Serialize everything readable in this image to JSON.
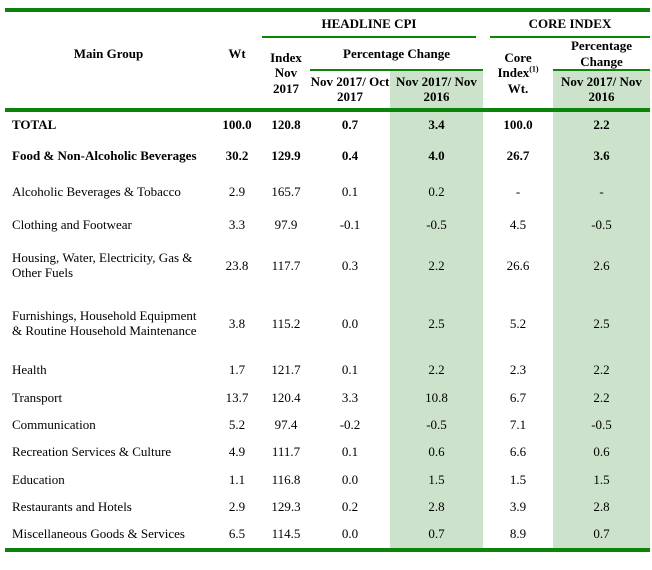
{
  "table": {
    "headers": {
      "main_group": "Main Group",
      "wt": "Wt",
      "headline_cpi": "HEADLINE CPI",
      "core_index": "CORE INDEX",
      "index_nov_2017": "Index Nov 2017",
      "percentage_change": "Percentage Change",
      "nov2017_oct2017": "Nov 2017/ Oct 2017",
      "nov2017_nov2016": "Nov 2017/ Nov 2016",
      "core_index_wt_pre": "Core Index",
      "core_index_wt_sup": "(1)",
      "core_index_wt_post": "Wt.",
      "core_percentage_change": "Percentage Change",
      "core_nov2017_nov2016": "Nov 2017/ Nov 2016"
    },
    "rows": [
      {
        "group": "TOTAL",
        "wt": "100.0",
        "index": "120.8",
        "mom": "0.7",
        "yoy": "3.4",
        "core_wt": "100.0",
        "core_yoy": "2.2",
        "bold": true
      },
      {
        "group": "Food & Non-Alcoholic Beverages",
        "wt": "30.2",
        "index": "129.9",
        "mom": "0.4",
        "yoy": "4.0",
        "core_wt": "26.7",
        "core_yoy": "3.6",
        "bold": true
      },
      {
        "group": "Alcoholic Beverages & Tobacco",
        "wt": "2.9",
        "index": "165.7",
        "mom": "0.1",
        "yoy": "0.2",
        "core_wt": "-",
        "core_yoy": "-",
        "bold": false
      },
      {
        "group": "Clothing and Footwear",
        "wt": "3.3",
        "index": "97.9",
        "mom": "-0.1",
        "yoy": "-0.5",
        "core_wt": "4.5",
        "core_yoy": "-0.5",
        "bold": false
      },
      {
        "group": "Housing, Water, Electricity, Gas & Other Fuels",
        "wt": "23.8",
        "index": "117.7",
        "mom": "0.3",
        "yoy": "2.2",
        "core_wt": "26.6",
        "core_yoy": "2.6",
        "bold": false
      },
      {
        "group": "Furnishings, Household Equipment & Routine Household Maintenance",
        "wt": "3.8",
        "index": "115.2",
        "mom": "0.0",
        "yoy": "2.5",
        "core_wt": "5.2",
        "core_yoy": "2.5",
        "bold": false
      },
      {
        "group": "Health",
        "wt": "1.7",
        "index": "121.7",
        "mom": "0.1",
        "yoy": "2.2",
        "core_wt": "2.3",
        "core_yoy": "2.2",
        "bold": false
      },
      {
        "group": "Transport",
        "wt": "13.7",
        "index": "120.4",
        "mom": "3.3",
        "yoy": "10.8",
        "core_wt": "6.7",
        "core_yoy": "2.2",
        "bold": false
      },
      {
        "group": "Communication",
        "wt": "5.2",
        "index": "97.4",
        "mom": "-0.2",
        "yoy": "-0.5",
        "core_wt": "7.1",
        "core_yoy": "-0.5",
        "bold": false
      },
      {
        "group": "Recreation Services & Culture",
        "wt": "4.9",
        "index": "111.7",
        "mom": "0.1",
        "yoy": "0.6",
        "core_wt": "6.6",
        "core_yoy": "0.6",
        "bold": false
      },
      {
        "group": "Education",
        "wt": "1.1",
        "index": "116.8",
        "mom": "0.0",
        "yoy": "1.5",
        "core_wt": "1.5",
        "core_yoy": "1.5",
        "bold": false
      },
      {
        "group": "Restaurants and Hotels",
        "wt": "2.9",
        "index": "129.3",
        "mom": "0.2",
        "yoy": "2.8",
        "core_wt": "3.9",
        "core_yoy": "2.8",
        "bold": false
      },
      {
        "group": "Miscellaneous Goods & Services",
        "wt": "6.5",
        "index": "114.5",
        "mom": "0.0",
        "yoy": "0.7",
        "core_wt": "8.9",
        "core_yoy": "0.7",
        "bold": false
      }
    ]
  },
  "colors": {
    "line_green": "#0a850a",
    "shade_green": "#cde2ca",
    "text": "#000000"
  }
}
